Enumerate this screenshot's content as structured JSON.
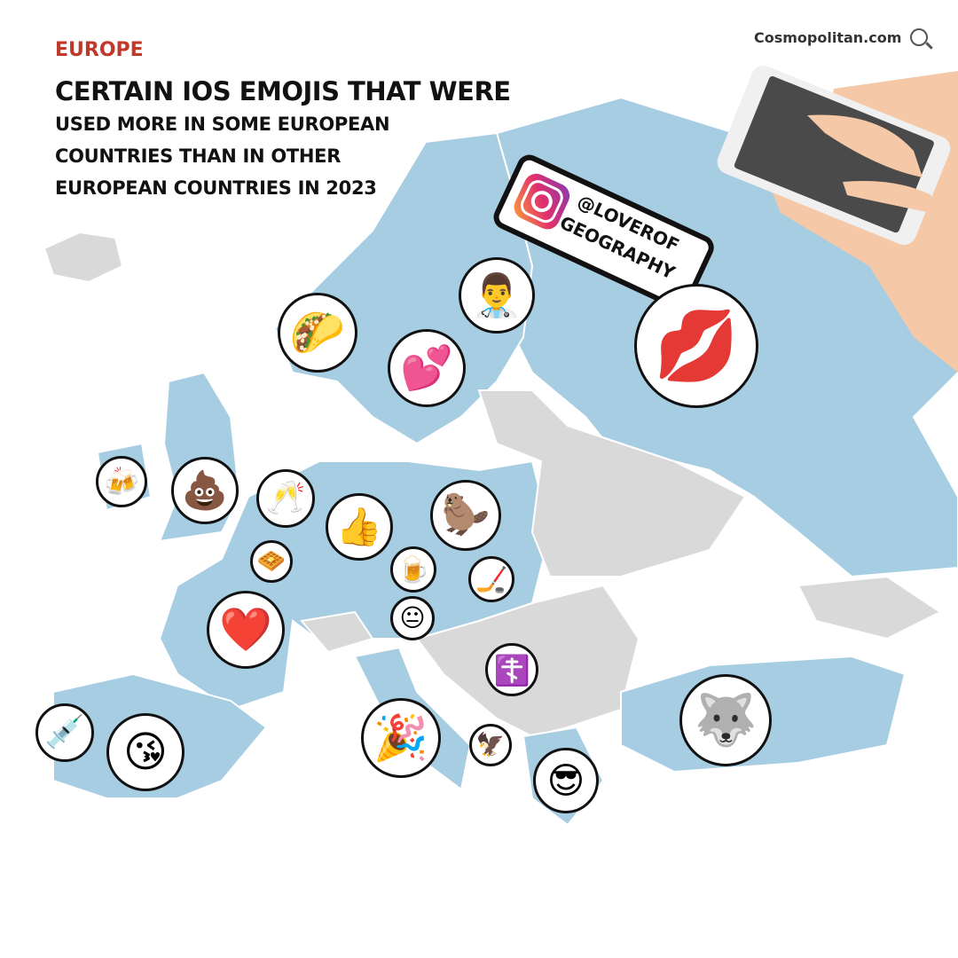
{
  "header": {
    "kicker": "EUROPE",
    "title_line1": "CERTAIN IOS EMOJIS THAT WERE",
    "title_line2": "USED MORE IN SOME EUROPEAN",
    "title_line3": "COUNTRIES THAN IN OTHER",
    "title_line4": "EUROPEAN COUNTRIES IN 2023"
  },
  "brand": {
    "text": "Cosmopolitan.com",
    "icon": "search-icon"
  },
  "badge": {
    "icon": "instagram-icon",
    "line1": "@LOVEROF",
    "line2": "GEOGRAPHY"
  },
  "colors": {
    "kicker": "#c0392b",
    "highlighted_country": "#a7cde3",
    "other_country": "#d9d9d9",
    "border": "#ffffff"
  },
  "emojis": [
    {
      "name": "taco",
      "glyph": "🌮"
    },
    {
      "name": "man-health-worker",
      "glyph": "👨‍⚕️"
    },
    {
      "name": "two-hearts",
      "glyph": "💕"
    },
    {
      "name": "kiss-mark",
      "glyph": "💋"
    },
    {
      "name": "clinking-beer-mugs",
      "glyph": "🍻"
    },
    {
      "name": "pile-of-poo",
      "glyph": "💩"
    },
    {
      "name": "clinking-glasses",
      "glyph": "🥂"
    },
    {
      "name": "thumbs-up",
      "glyph": "👍"
    },
    {
      "name": "beaver",
      "glyph": "🦫"
    },
    {
      "name": "waffle",
      "glyph": "🧇"
    },
    {
      "name": "beer-mug",
      "glyph": "🍺"
    },
    {
      "name": "ice-hockey",
      "glyph": "🏒"
    },
    {
      "name": "neutral-face",
      "glyph": "😐"
    },
    {
      "name": "red-heart",
      "glyph": "❤️"
    },
    {
      "name": "orthodox-cross",
      "glyph": "☦️"
    },
    {
      "name": "syringe",
      "glyph": "💉"
    },
    {
      "name": "face-blowing-kiss",
      "glyph": "😘"
    },
    {
      "name": "party-popper",
      "glyph": "🎉"
    },
    {
      "name": "eagle",
      "glyph": "🦅"
    },
    {
      "name": "smiling-face-with-sunglasses",
      "glyph": "😎"
    },
    {
      "name": "wolf",
      "glyph": "🐺"
    }
  ]
}
